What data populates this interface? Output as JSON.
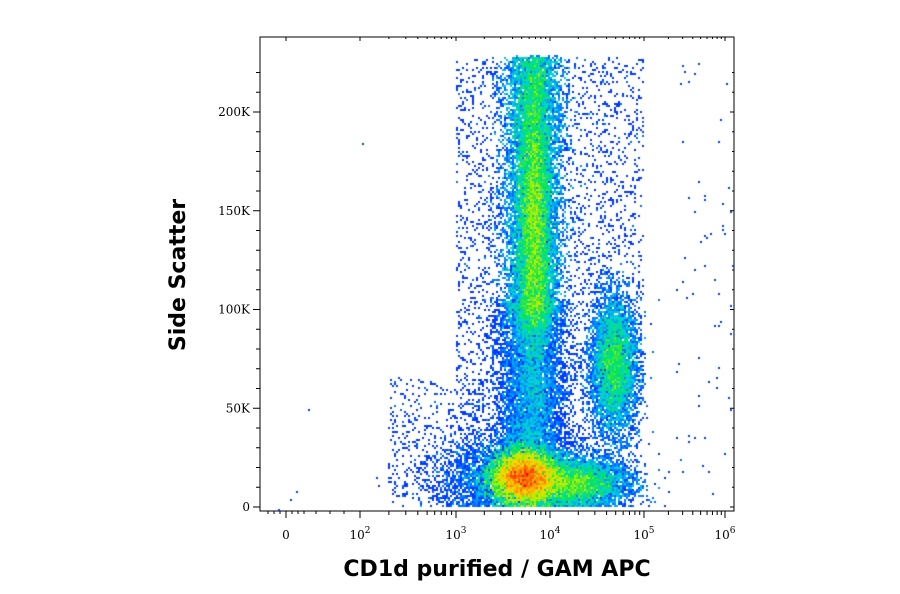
{
  "chart_data": {
    "type": "heatmap",
    "subtype": "flow-cytometry density dot plot",
    "xlabel": "CD1d purified / GAM APC",
    "ylabel": "Side Scatter",
    "x_scale": "biexponential (log above ~10^2)",
    "x_ticks": [
      {
        "base": "0",
        "exp": ""
      },
      {
        "base": "10",
        "exp": "2"
      },
      {
        "base": "10",
        "exp": "3"
      },
      {
        "base": "10",
        "exp": "4"
      },
      {
        "base": "10",
        "exp": "5"
      },
      {
        "base": "10",
        "exp": "6"
      }
    ],
    "y_ticks": [
      "0",
      "50K",
      "100K",
      "150K",
      "200K"
    ],
    "ylim": [
      0,
      230000
    ],
    "grid": false,
    "colormap": [
      "#0000ff",
      "#0078ff",
      "#00d2e6",
      "#00e650",
      "#b4f000",
      "#ffd200",
      "#ff6e00",
      "#e60000"
    ],
    "populations": [
      {
        "id": "lymphocytes",
        "x_log10_center": 3.7,
        "y_center": 15000,
        "relative_density": "highest"
      },
      {
        "id": "granulocytes",
        "x_log10_center": 3.85,
        "y_center": 165000,
        "relative_density": "high"
      },
      {
        "id": "monocytes",
        "x_log10_center": 4.7,
        "y_center": 70000,
        "relative_density": "medium"
      }
    ]
  }
}
